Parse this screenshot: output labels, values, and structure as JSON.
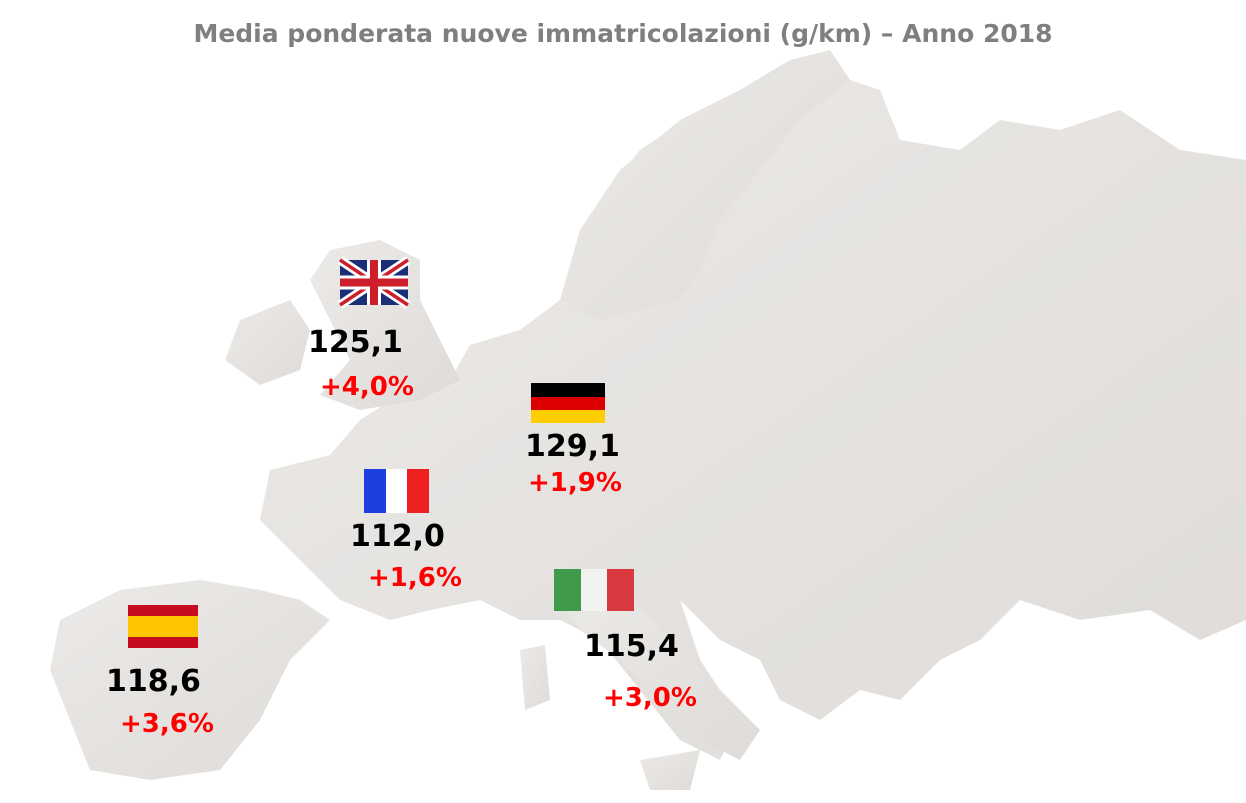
{
  "title": "Media ponderata nuove immatricolazioni (g/km) – Anno 2018",
  "countries": [
    {
      "value": "125,1",
      "change": "+4,0%"
    },
    {
      "value": "129,1",
      "change": "+1,9%"
    },
    {
      "value": "112,0",
      "change": "+1,6%"
    },
    {
      "value": "115,4",
      "change": "+3,0%"
    },
    {
      "value": "118,6",
      "change": "+3,6%"
    }
  ]
}
